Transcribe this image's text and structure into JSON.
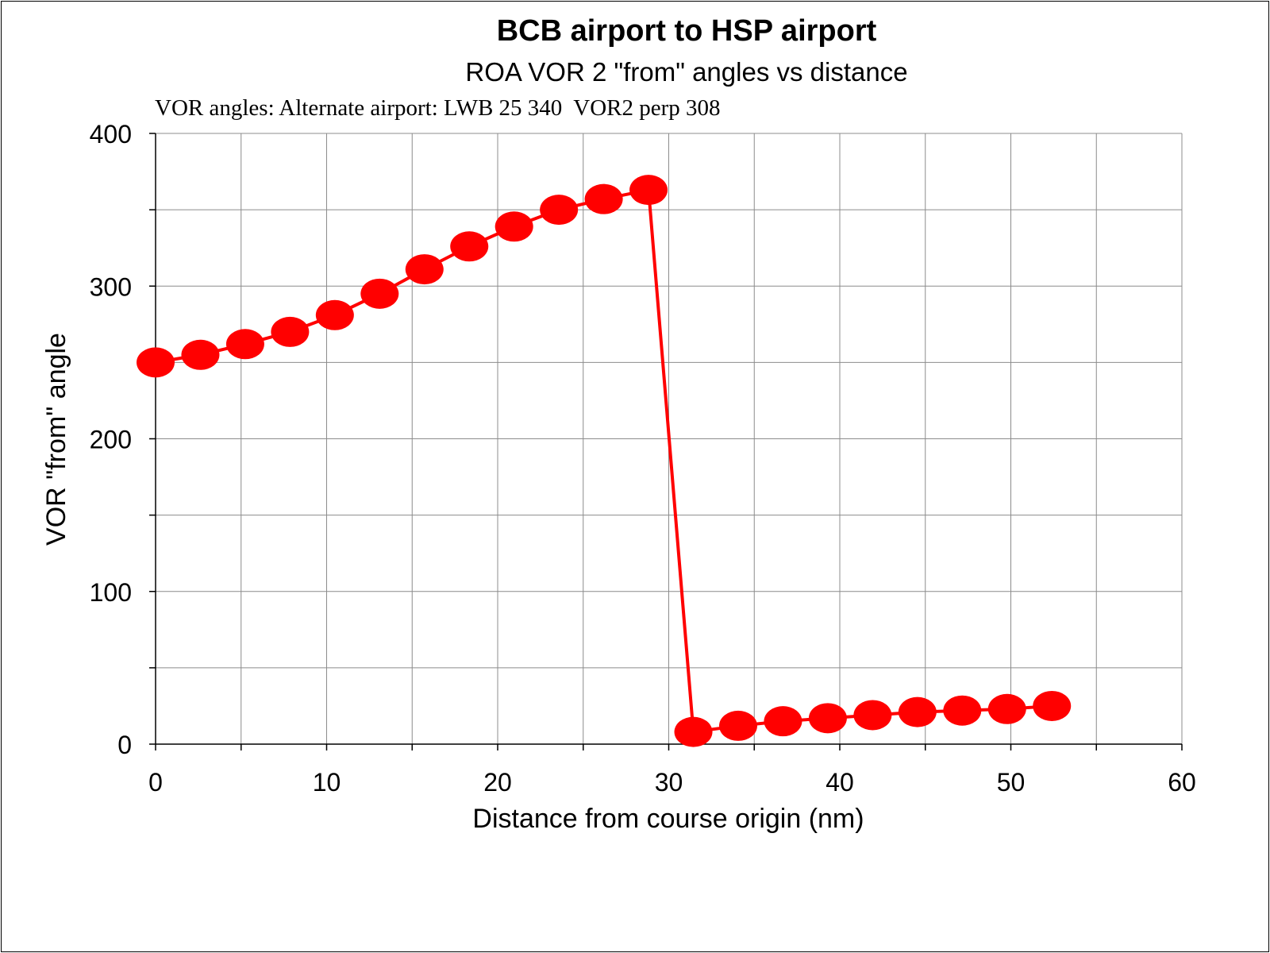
{
  "chart_data": {
    "type": "line",
    "title": "BCB airport  to HSP airport",
    "subtitle": "ROA VOR 2  \"from\" angles vs distance",
    "annotation": "VOR angles: Alternate airport: LWB 25 340  VOR2 perp 308",
    "xlabel": "Distance from course origin (nm)",
    "ylabel": "VOR \"from\" angle",
    "xlim": [
      0,
      60
    ],
    "ylim": [
      0,
      400
    ],
    "xticks": [
      0,
      10,
      20,
      30,
      40,
      50,
      60
    ],
    "yticks": [
      0,
      100,
      200,
      300,
      400
    ],
    "grid": true,
    "legend": "none",
    "series": [
      {
        "color": "#ff0000",
        "x": [
          0,
          2.62,
          5.24,
          7.86,
          10.48,
          13.1,
          15.72,
          18.34,
          20.96,
          23.58,
          26.2,
          28.82,
          31.44,
          34.06,
          36.68,
          39.3,
          41.92,
          44.54,
          47.16,
          49.78,
          52.4
        ],
        "y": [
          250,
          255,
          262,
          270,
          281,
          295,
          311,
          326,
          339,
          350,
          357,
          363,
          8,
          12,
          15,
          17,
          19,
          21,
          22,
          23,
          25
        ]
      }
    ]
  }
}
